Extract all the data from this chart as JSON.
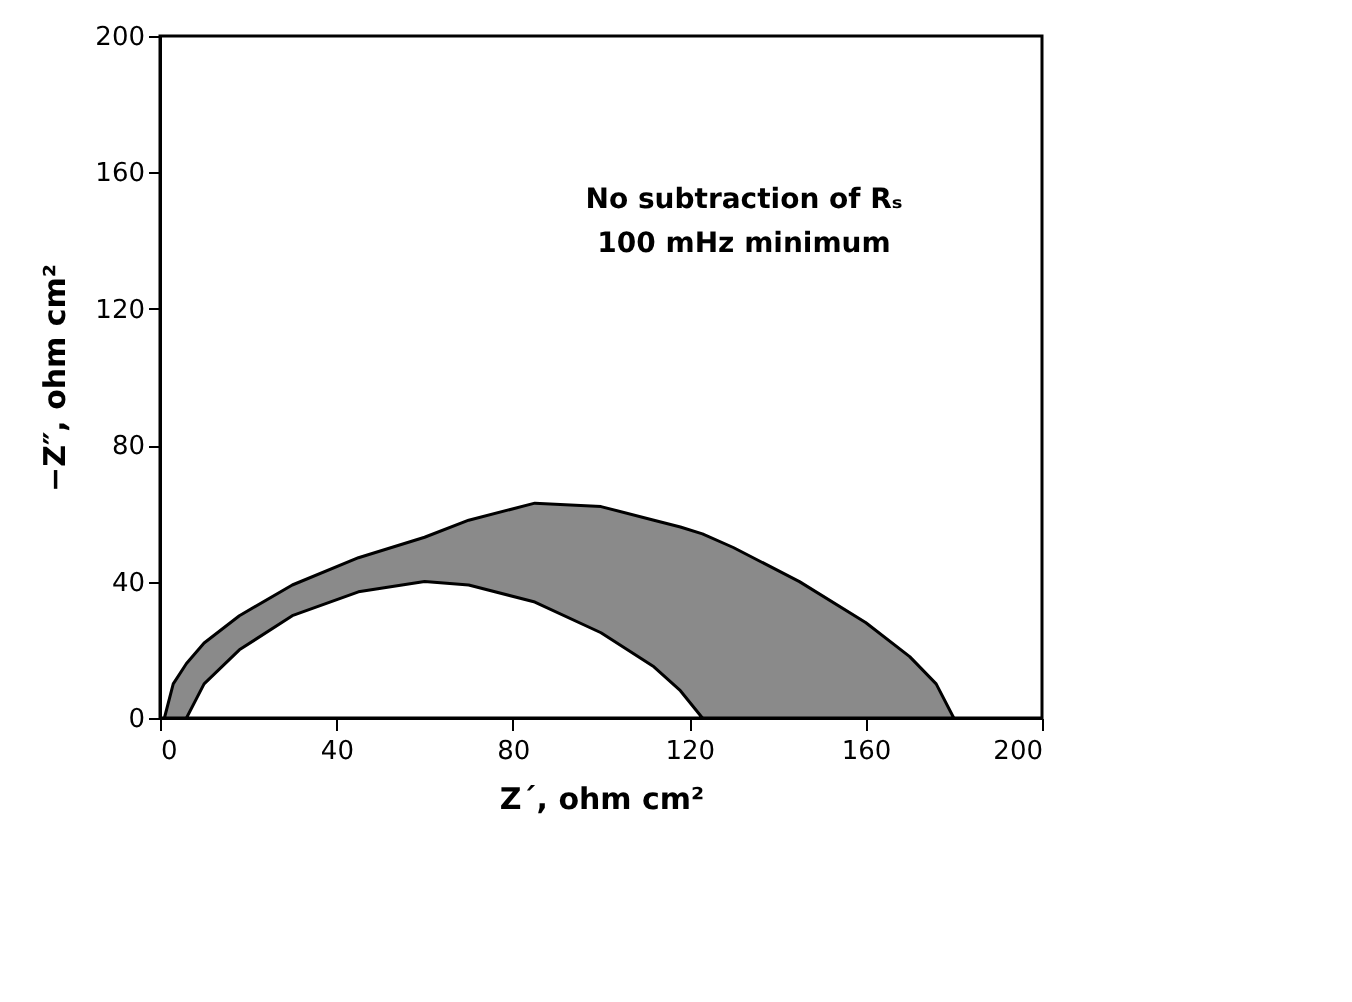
{
  "chart_data": {
    "type": "area",
    "xlabel": "Z´, ohm cm²",
    "ylabel": "−Z″, ohm cm²",
    "annotations": [
      "No subtraction of Rₛ",
      "100 mHz minimum"
    ],
    "xlim": [
      0,
      200
    ],
    "xticks": [
      0,
      40,
      80,
      120,
      160,
      200
    ],
    "ylim": [
      0,
      200
    ],
    "yticks": [
      0,
      40,
      80,
      120,
      160,
      200
    ],
    "grid": false,
    "series": [
      {
        "type": "area",
        "color": "#8a8a8a",
        "x": [
          1,
          3,
          6,
          10,
          18,
          30,
          45,
          60,
          70,
          85,
          100,
          112,
          118,
          123,
          130,
          145,
          160,
          170,
          176,
          180
        ],
        "values": [
          0,
          10,
          16,
          22,
          30,
          39,
          47,
          53,
          58,
          63,
          62,
          58,
          56,
          54,
          50,
          40,
          28,
          18,
          10,
          0
        ]
      },
      {
        "type": "area",
        "color": "#ffffff",
        "x": [
          6,
          10,
          18,
          30,
          45,
          60,
          70,
          85,
          100,
          112,
          118,
          123
        ],
        "values": [
          0,
          10,
          20,
          30,
          37,
          40,
          39,
          34,
          25,
          15,
          8,
          0
        ]
      }
    ]
  }
}
